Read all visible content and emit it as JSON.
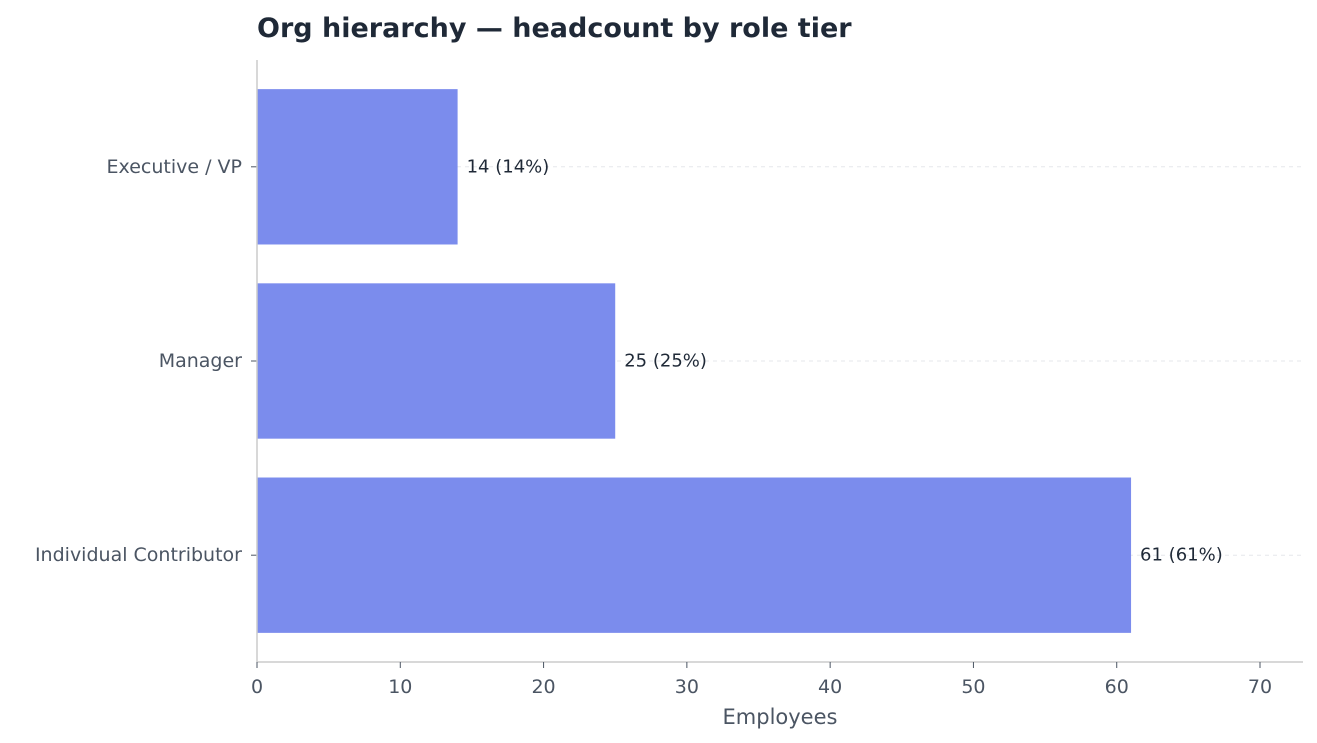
{
  "chart_data": {
    "type": "bar",
    "orientation": "horizontal",
    "title": "Org hierarchy — headcount by role tier",
    "xlabel": "Employees",
    "ylabel": "",
    "categories": [
      "Executive / VP",
      "Manager",
      "Individual Contributor"
    ],
    "values": [
      14,
      25,
      61
    ],
    "data_labels": [
      "14 (14%)",
      "25 (25%)",
      "61 (61%)"
    ],
    "xlim": [
      0,
      73
    ],
    "xticks": [
      0,
      10,
      20,
      30,
      40,
      50,
      60,
      70
    ],
    "xtick_labels": [
      "0",
      "10",
      "20",
      "30",
      "40",
      "50",
      "60",
      "70"
    ],
    "grid": "horizontal dashed, faint",
    "legend": "none"
  },
  "colors": {
    "bar": "#7b8ced",
    "title": "#1f2937",
    "text": "#4b5563",
    "data_label": "#1f2937",
    "axis": "#cccccc",
    "grid": "#e5e7eb"
  }
}
